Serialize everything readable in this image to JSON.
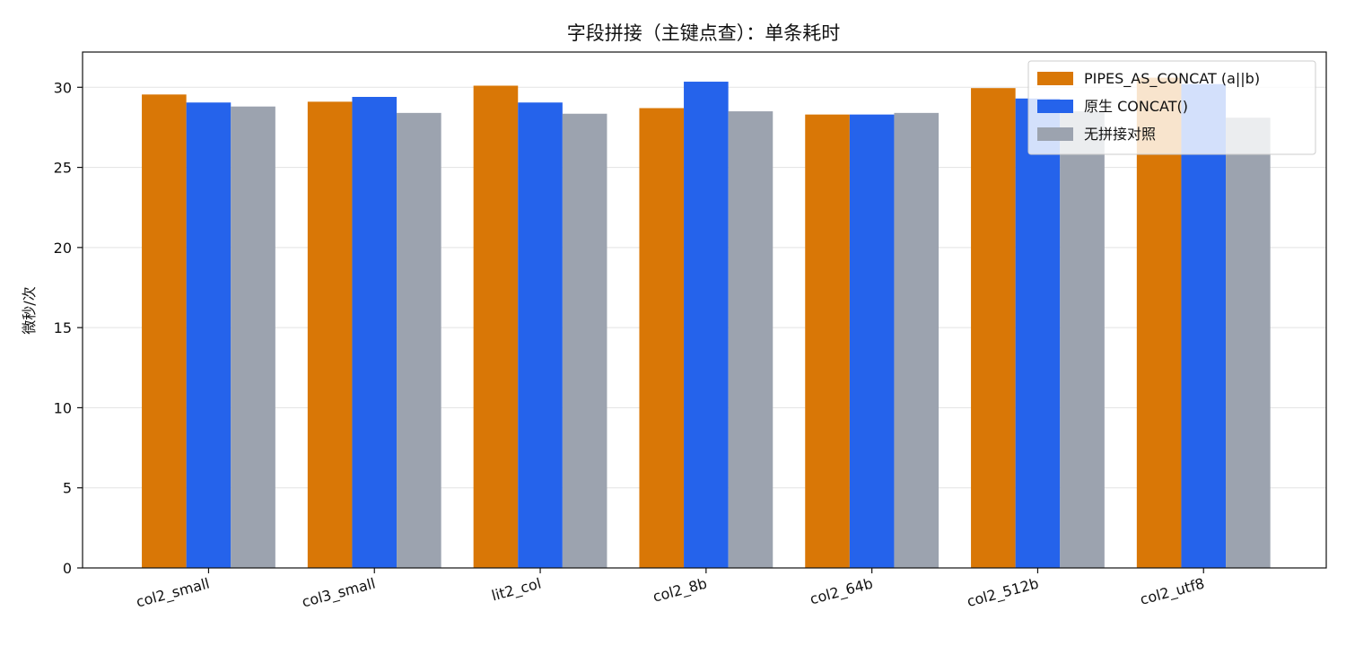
{
  "chart_data": {
    "type": "bar",
    "title": "字段拼接（主键点查）：单条耗时",
    "xlabel": "",
    "ylabel": "微秒/次",
    "categories": [
      "col2_small",
      "col3_small",
      "lit2_col",
      "col2_8b",
      "col2_64b",
      "col2_512b",
      "col2_utf8"
    ],
    "ylim": [
      0,
      32.2
    ],
    "yticks": [
      0,
      5,
      10,
      15,
      20,
      25,
      30
    ],
    "grid": "horizontal",
    "legend_position": "top-right",
    "series": [
      {
        "name": "PIPES_AS_CONCAT (a||b)",
        "color": "#d97706",
        "values": [
          29.55,
          29.1,
          30.1,
          28.7,
          28.3,
          29.95,
          30.6
        ]
      },
      {
        "name": "原生 CONCAT()",
        "color": "#2563eb",
        "values": [
          29.05,
          29.4,
          29.05,
          30.35,
          28.3,
          29.3,
          30.2
        ]
      },
      {
        "name": "无拼接对照",
        "color": "#9ca3af",
        "values": [
          28.8,
          28.4,
          28.35,
          28.5,
          28.4,
          28.5,
          28.1
        ]
      }
    ]
  }
}
